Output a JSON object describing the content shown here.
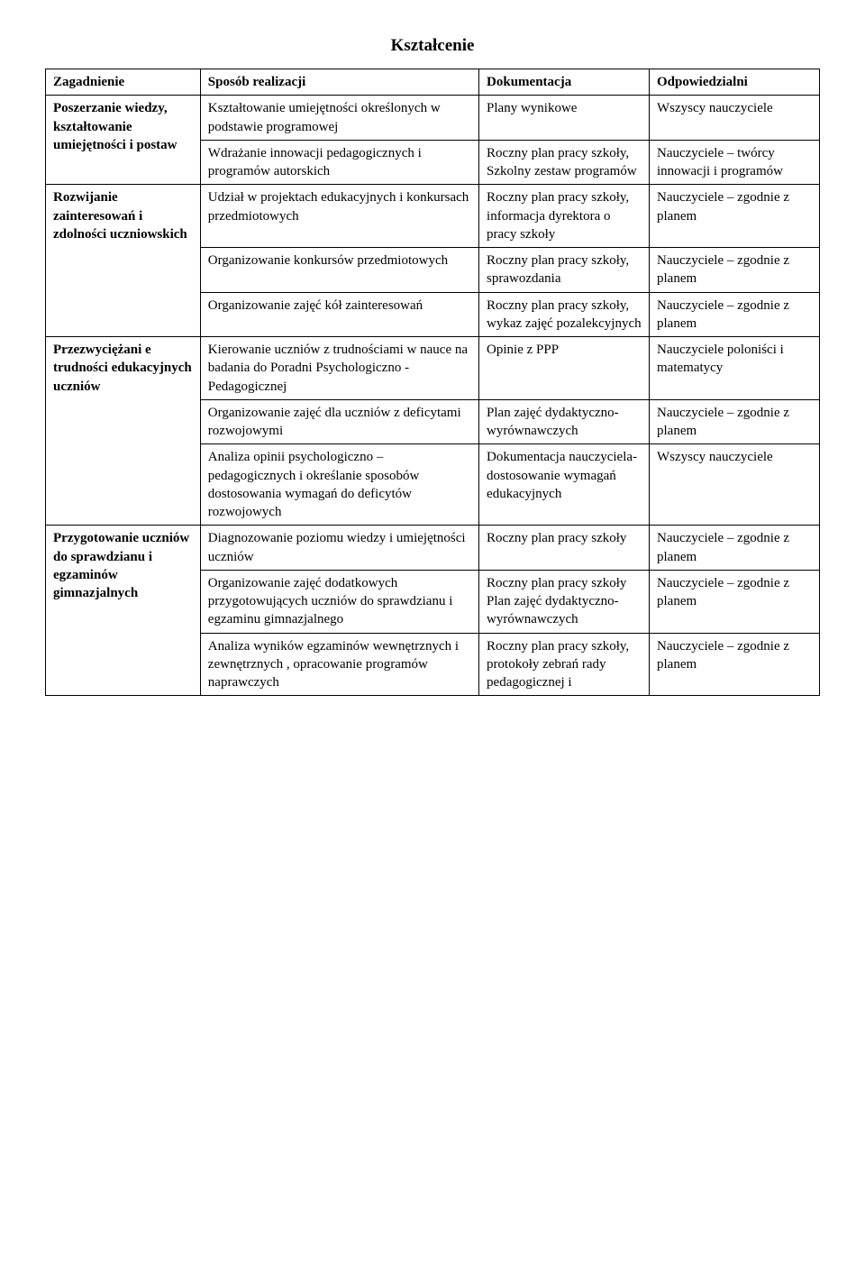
{
  "title": "Kształcenie",
  "headers": {
    "col1": "Zagadnienie",
    "col2": "Sposób realizacji",
    "col3": "Dokumentacja",
    "col4": "Odpowiedzialni"
  },
  "r1": {
    "topic": "Poszerzanie wiedzy, kształtowanie umiejętności i postaw",
    "a": {
      "sposob": "Kształtowanie umiejętności określonych w podstawie programowej",
      "dok": "Plany wynikowe",
      "odp": "Wszyscy nauczyciele"
    },
    "b": {
      "sposob": "Wdrażanie innowacji pedagogicznych i programów autorskich",
      "dok": "Roczny plan pracy szkoły, Szkolny zestaw programów",
      "odp": "Nauczyciele – twórcy innowacji i programów"
    }
  },
  "r2": {
    "topic": "Rozwijanie zainteresowań i zdolności uczniowskich",
    "a": {
      "sposob": "Udział w projektach edukacyjnych i konkursach przedmiotowych",
      "dok": "Roczny plan pracy szkoły, informacja dyrektora o pracy szkoły",
      "odp": "Nauczyciele – zgodnie z planem"
    },
    "b": {
      "sposob": "Organizowanie konkursów przedmiotowych",
      "dok": "Roczny plan pracy szkoły, sprawozdania",
      "odp": "Nauczyciele – zgodnie z planem"
    },
    "c": {
      "sposob": "Organizowanie zajęć kół zainteresowań",
      "dok": "Roczny plan pracy szkoły, wykaz zajęć pozalekcyjnych",
      "odp": "Nauczyciele – zgodnie z planem"
    }
  },
  "r3": {
    "topic": "Przezwyciężani e trudności edukacyjnych uczniów",
    "a": {
      "sposob": "Kierowanie uczniów z trudnościami w nauce na badania do Poradni Psychologiczno - Pedagogicznej",
      "dok": "Opinie z PPP",
      "odp": "Nauczyciele poloniści i matematycy"
    },
    "b": {
      "sposob": "Organizowanie zajęć dla uczniów z deficytami rozwojowymi",
      "dok": "Plan zajęć dydaktyczno-wyrównawczych",
      "odp": "Nauczyciele – zgodnie z planem"
    },
    "c": {
      "sposob": "Analiza opinii psychologiczno – pedagogicznych i określanie sposobów dostosowania wymagań do deficytów rozwojowych",
      "dok": "Dokumentacja nauczyciela-dostosowanie wymagań edukacyjnych",
      "odp": "Wszyscy nauczyciele"
    }
  },
  "r4": {
    "topic": "Przygotowanie uczniów do sprawdzianu i egzaminów gimnazjalnych",
    "a": {
      "sposob": "Diagnozowanie poziomu wiedzy i umiejętności uczniów",
      "dok": "Roczny plan pracy szkoły",
      "odp": "Nauczyciele – zgodnie z planem"
    },
    "b": {
      "sposob": "Organizowanie zajęć dodatkowych przygotowujących uczniów do sprawdzianu i egzaminu gimnazjalnego",
      "dok": "Roczny plan pracy szkoły Plan zajęć dydaktyczno-wyrównawczych",
      "odp": "Nauczyciele – zgodnie z planem"
    },
    "c": {
      "sposob": "Analiza wyników egzaminów wewnętrznych i zewnętrznych , opracowanie programów naprawczych",
      "dok": "Roczny plan pracy szkoły, protokoły zebrań rady pedagogicznej i",
      "odp": "Nauczyciele – zgodnie z planem"
    }
  }
}
